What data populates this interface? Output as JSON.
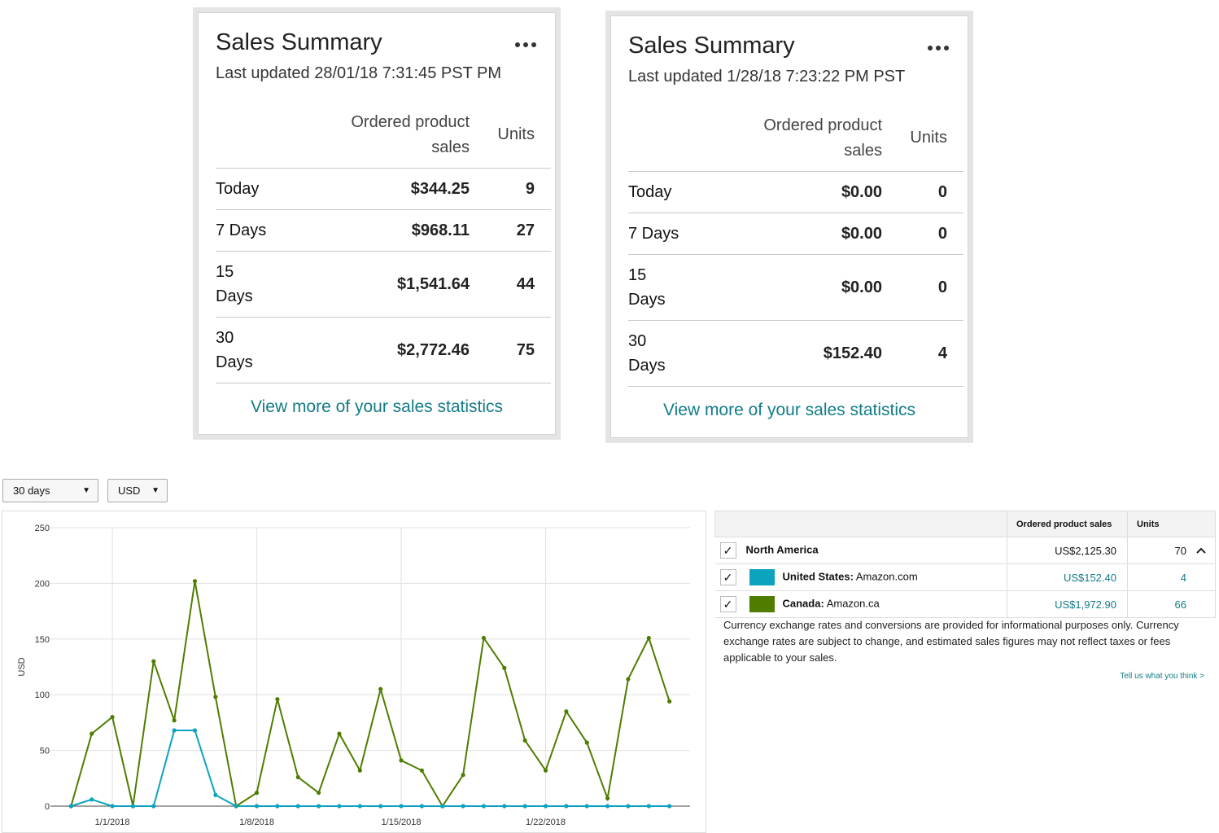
{
  "cards": [
    {
      "title": "Sales Summary",
      "updated": "Last updated 28/01/18 7:31:45 PST PM",
      "headers": [
        "Ordered product sales",
        "Units"
      ],
      "rows": [
        {
          "label": "Today",
          "sales": "$344.25",
          "units": 9
        },
        {
          "label": "7 Days",
          "sales": "$968.11",
          "units": 27
        },
        {
          "label": "15 Days",
          "sales": "$1,541.64",
          "units": 44
        },
        {
          "label": "30 Days",
          "sales": "$2,772.46",
          "units": 75
        }
      ],
      "link": "View more of your sales statistics"
    },
    {
      "title": "Sales Summary",
      "updated": "Last updated 1/28/18 7:23:22 PM PST",
      "headers": [
        "Ordered product sales",
        "Units"
      ],
      "rows": [
        {
          "label": "Today",
          "sales": "$0.00",
          "units": 0
        },
        {
          "label": "7 Days",
          "sales": "$0.00",
          "units": 0
        },
        {
          "label": "15 Days",
          "sales": "$0.00",
          "units": 0
        },
        {
          "label": "30 Days",
          "sales": "$152.40",
          "units": 4
        }
      ],
      "link": "View more of your sales statistics"
    }
  ],
  "controls": [
    "30 days",
    "USD"
  ],
  "chart_data": {
    "type": "line",
    "ylabel": "USD",
    "x": [
      "12/30/2017",
      "12/31/2017",
      "1/1/2018",
      "1/2/2018",
      "1/3/2018",
      "1/4/2018",
      "1/5/2018",
      "1/6/2018",
      "1/7/2018",
      "1/8/2018",
      "1/9/2018",
      "1/10/2018",
      "1/11/2018",
      "1/12/2018",
      "1/13/2018",
      "1/14/2018",
      "1/15/2018",
      "1/16/2018",
      "1/17/2018",
      "1/18/2018",
      "1/19/2018",
      "1/20/2018",
      "1/21/2018",
      "1/22/2018",
      "1/23/2018",
      "1/24/2018",
      "1/25/2018",
      "1/26/2018",
      "1/27/2018",
      "1/28/2018"
    ],
    "xlim": [
      "12/29/2017",
      "1/29/2018"
    ],
    "xticks": [
      "1/1/2018",
      "1/8/2018",
      "1/15/2018",
      "1/22/2018"
    ],
    "ylim": [
      0,
      250
    ],
    "yticks": [
      0,
      50,
      100,
      150,
      200,
      250
    ],
    "grid": true,
    "series": [
      {
        "color": "#4f7d00",
        "values": [
          0,
          65,
          80,
          0,
          130,
          77,
          202,
          98,
          0,
          12,
          96,
          26,
          12,
          65,
          32,
          105,
          41,
          32,
          0,
          28,
          151,
          124,
          59,
          32,
          85,
          57,
          7,
          114,
          151,
          94
        ]
      },
      {
        "color": "#0ba3bd",
        "values": [
          0,
          6,
          0,
          0,
          0,
          68,
          68,
          10,
          0,
          0,
          0,
          0,
          0,
          0,
          0,
          0,
          0,
          0,
          0,
          0,
          0,
          0,
          0,
          0,
          0,
          0,
          0,
          0,
          0,
          0
        ]
      }
    ]
  },
  "table": {
    "headers": [
      "Ordered product sales",
      "Units"
    ],
    "rows": [
      {
        "region": "North America",
        "sales": "US$2,125.30",
        "units": 70
      },
      {
        "region": "United States:",
        "store": "Amazon.com",
        "color": "#0ba3bd",
        "sales": "US$152.40",
        "units": 4
      },
      {
        "region": "Canada:",
        "store": "Amazon.ca",
        "color": "#4f7d00",
        "sales": "US$1,972.90",
        "units": 66
      }
    ]
  },
  "note": "Currency exchange rates and conversions are provided for informational purposes only. Currency exchange rates are subject to change, and estimated sales figures may not reflect taxes or fees applicable to your sales.",
  "feedback": "Tell us what you think >"
}
